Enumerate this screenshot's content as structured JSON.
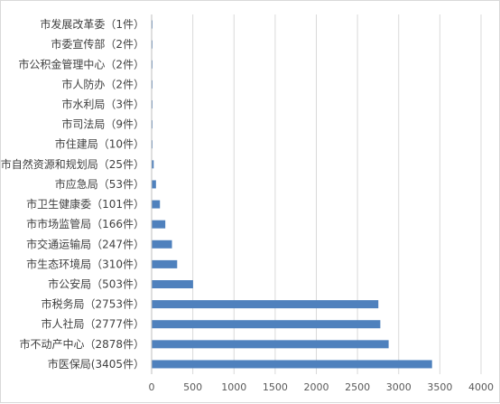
{
  "chart_data": {
    "type": "bar",
    "orientation": "horizontal",
    "categories": [
      "市医保局(3405件）",
      "市不动产中心（2878件）",
      "市人社局（2777件）",
      "市税务局（2753件）",
      "市公安局（503件）",
      "市生态环境局（310件）",
      "市交通运输局（247件）",
      "市市场监管局（166件）",
      "市卫生健康委（101件）",
      "市应急局（53件）",
      "市自然资源和规划局（25件）",
      "市住建局（10件）",
      "市司法局（9件）",
      "市水利局（3件）",
      "市人防办（2件）",
      "市公积金管理中心（2件）",
      "市委宣传部（2件）",
      "市发展改革委（1件）"
    ],
    "values": [
      3405,
      2878,
      2777,
      2753,
      503,
      310,
      247,
      166,
      101,
      53,
      25,
      10,
      9,
      3,
      2,
      2,
      2,
      1
    ],
    "xlim": [
      0,
      4000
    ],
    "xticks": [
      "0",
      "500",
      "1000",
      "1500",
      "2000",
      "2500",
      "3000",
      "3500",
      "4000"
    ],
    "bar_color": "#4f81bd",
    "grid": true,
    "legend": "none"
  }
}
